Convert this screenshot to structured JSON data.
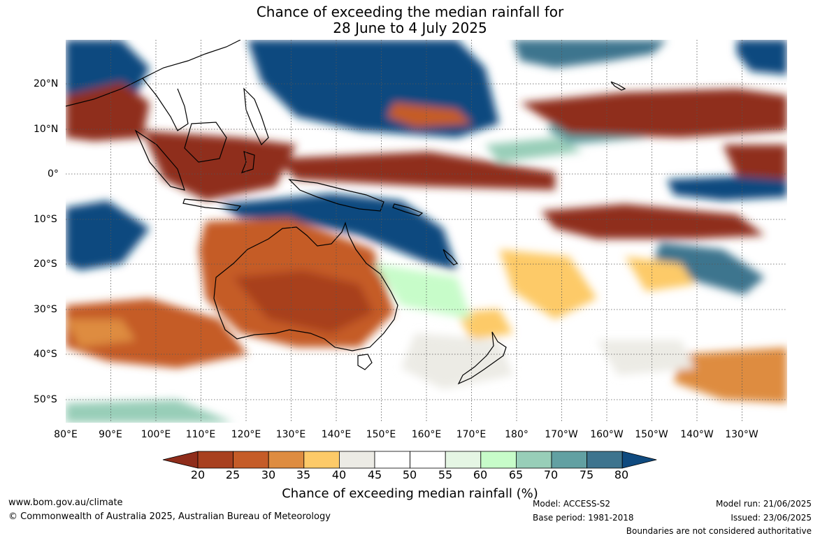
{
  "title": {
    "line1": "Chance of exceeding the median rainfall for",
    "line2": "28 June to 4 July 2025"
  },
  "axes": {
    "lon_labels": [
      "80°E",
      "90°E",
      "100°E",
      "110°E",
      "120°E",
      "130°E",
      "140°E",
      "150°E",
      "160°E",
      "170°E",
      "180°",
      "170°W",
      "160°W",
      "150°W",
      "140°W",
      "130°W"
    ],
    "lat_labels": [
      "20°N",
      "10°N",
      "0°",
      "10°S",
      "20°S",
      "30°S",
      "40°S",
      "50°S"
    ]
  },
  "colorbar": {
    "ticks": [
      "20",
      "25",
      "30",
      "35",
      "40",
      "45",
      "50",
      "55",
      "60",
      "65",
      "70",
      "75",
      "80"
    ],
    "colors": [
      "#8f2d1b",
      "#a8401f",
      "#c55c28",
      "#de8c40",
      "#fdca68",
      "#ecebe5",
      "#ffffff",
      "#ffffff",
      "#e5f6e4",
      "#c7fcc9",
      "#98ceb8",
      "#62a0a2",
      "#3e748e",
      "#0f4a7f"
    ],
    "label": "Chance of exceeding median rainfall (%)"
  },
  "footer": {
    "website": "www.bom.gov.au/climate",
    "copyright": "© Commonwealth of Australia 2025, Australian Bureau of Meteorology",
    "model": "Model: ACCESS-S2",
    "base_period": "Base period: 1981-2018",
    "model_run": "Model run: 21/06/2025",
    "issued": "Issued: 23/06/2025",
    "disclaimer": "Boundaries are not considered authoritative"
  }
}
